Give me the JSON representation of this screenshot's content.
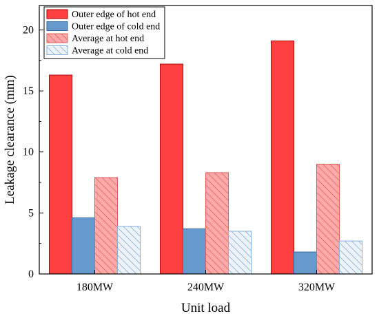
{
  "chart_data": {
    "type": "bar",
    "title": "",
    "xlabel": "Unit load",
    "ylabel": "Leakage clearance (mm)",
    "categories": [
      "180MW",
      "240MW",
      "320MW"
    ],
    "ylim": [
      0,
      22
    ],
    "yticks": [
      0,
      5,
      10,
      15,
      20
    ],
    "grid": false,
    "legend_position": "top-left",
    "series": [
      {
        "name": "Outer edge of hot end",
        "values": [
          16.3,
          17.2,
          19.1
        ],
        "fill": "#ff4040",
        "stroke": "#b00000",
        "pattern": "solid"
      },
      {
        "name": "Outer edge of cold end",
        "values": [
          4.6,
          3.7,
          1.8
        ],
        "fill": "#6699cc",
        "stroke": "#3366a0",
        "pattern": "solid"
      },
      {
        "name": "Average at hot end",
        "values": [
          7.9,
          8.3,
          9.0
        ],
        "fill": "#ffaaaa",
        "stroke": "#e06060",
        "pattern": "hatch"
      },
      {
        "name": "Average at cold end",
        "values": [
          3.9,
          3.5,
          2.7
        ],
        "fill": "#eef3fa",
        "stroke": "#88b0dd",
        "pattern": "hatch"
      }
    ]
  }
}
